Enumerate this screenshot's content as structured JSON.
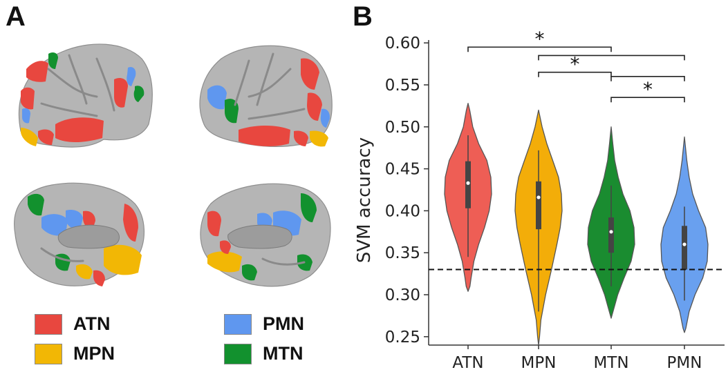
{
  "panels": {
    "a_label": "A",
    "b_label": "B"
  },
  "legend": [
    {
      "name": "ATN",
      "color": "#e8473f"
    },
    {
      "name": "MPN",
      "color": "#f2b705"
    },
    {
      "name": "PMN",
      "color": "#5f97ef"
    },
    {
      "name": "MTN",
      "color": "#12912e"
    }
  ],
  "brain_colors": {
    "cortex": "#b5b5b5",
    "ATN": "#e8473f",
    "MPN": "#f2b705",
    "PMN": "#5f97ef",
    "MTN": "#12912e"
  },
  "chart_data": {
    "type": "violin",
    "categories": [
      "ATN",
      "MPN",
      "MTN",
      "PMN"
    ],
    "colors": [
      "#ee5e55",
      "#f3ad09",
      "#1a8c30",
      "#69a0ef"
    ],
    "ylabel": "SVM accuracy",
    "ylim": [
      0.24,
      0.61
    ],
    "yticks": [
      0.25,
      0.3,
      0.35,
      0.4,
      0.45,
      0.5,
      0.55,
      0.6
    ],
    "ytick_labels": [
      "0.25",
      "0.30",
      "0.35",
      "0.40",
      "0.45",
      "0.50",
      "0.55",
      "0.60"
    ],
    "chance_level": 0.33,
    "violins": [
      {
        "name": "ATN",
        "min": 0.304,
        "max": 0.528,
        "median": 0.433,
        "q1": 0.403,
        "q3": 0.459,
        "whisker_low": 0.345,
        "whisker_high": 0.49,
        "density": [
          [
            0.304,
            0.0
          ],
          [
            0.31,
            0.08
          ],
          [
            0.32,
            0.13
          ],
          [
            0.34,
            0.25
          ],
          [
            0.36,
            0.45
          ],
          [
            0.38,
            0.7
          ],
          [
            0.4,
            0.9
          ],
          [
            0.42,
            1.0
          ],
          [
            0.44,
            0.97
          ],
          [
            0.46,
            0.8
          ],
          [
            0.48,
            0.45
          ],
          [
            0.5,
            0.2
          ],
          [
            0.52,
            0.07
          ],
          [
            0.528,
            0.0
          ]
        ]
      },
      {
        "name": "MPN",
        "min": 0.24,
        "max": 0.52,
        "median": 0.416,
        "q1": 0.378,
        "q3": 0.435,
        "whisker_low": 0.28,
        "whisker_high": 0.472,
        "density": [
          [
            0.24,
            0.0
          ],
          [
            0.25,
            0.04
          ],
          [
            0.27,
            0.1
          ],
          [
            0.3,
            0.3
          ],
          [
            0.33,
            0.55
          ],
          [
            0.36,
            0.78
          ],
          [
            0.38,
            0.92
          ],
          [
            0.4,
            1.0
          ],
          [
            0.42,
            0.97
          ],
          [
            0.44,
            0.85
          ],
          [
            0.46,
            0.6
          ],
          [
            0.48,
            0.35
          ],
          [
            0.5,
            0.15
          ],
          [
            0.52,
            0.0
          ]
        ]
      },
      {
        "name": "MTN",
        "min": 0.272,
        "max": 0.5,
        "median": 0.375,
        "q1": 0.35,
        "q3": 0.392,
        "whisker_low": 0.31,
        "whisker_high": 0.43,
        "density": [
          [
            0.272,
            0.0
          ],
          [
            0.28,
            0.08
          ],
          [
            0.3,
            0.28
          ],
          [
            0.32,
            0.55
          ],
          [
            0.34,
            0.85
          ],
          [
            0.36,
            1.0
          ],
          [
            0.38,
            0.97
          ],
          [
            0.4,
            0.8
          ],
          [
            0.42,
            0.5
          ],
          [
            0.44,
            0.3
          ],
          [
            0.46,
            0.15
          ],
          [
            0.48,
            0.07
          ],
          [
            0.5,
            0.0
          ]
        ]
      },
      {
        "name": "PMN",
        "min": 0.255,
        "max": 0.488,
        "median": 0.36,
        "q1": 0.33,
        "q3": 0.382,
        "whisker_low": 0.293,
        "whisker_high": 0.405,
        "density": [
          [
            0.255,
            0.0
          ],
          [
            0.26,
            0.06
          ],
          [
            0.28,
            0.2
          ],
          [
            0.3,
            0.45
          ],
          [
            0.32,
            0.78
          ],
          [
            0.34,
            0.97
          ],
          [
            0.36,
            1.0
          ],
          [
            0.38,
            0.9
          ],
          [
            0.4,
            0.6
          ],
          [
            0.42,
            0.35
          ],
          [
            0.44,
            0.2
          ],
          [
            0.46,
            0.1
          ],
          [
            0.488,
            0.0
          ]
        ]
      }
    ],
    "significance": [
      {
        "from": "ATN",
        "to": "MTN",
        "y": 0.595,
        "label": "*"
      },
      {
        "from": "MPN",
        "to": "PMN",
        "y": 0.585,
        "label": ""
      },
      {
        "from": "MPN",
        "to": "MTN",
        "y": 0.565,
        "label": "*"
      },
      {
        "from": "MTN",
        "to": "PMN",
        "y": 0.56,
        "label": ""
      },
      {
        "from": "MTN",
        "to": "PMN",
        "y": 0.535,
        "label": "*"
      }
    ]
  }
}
